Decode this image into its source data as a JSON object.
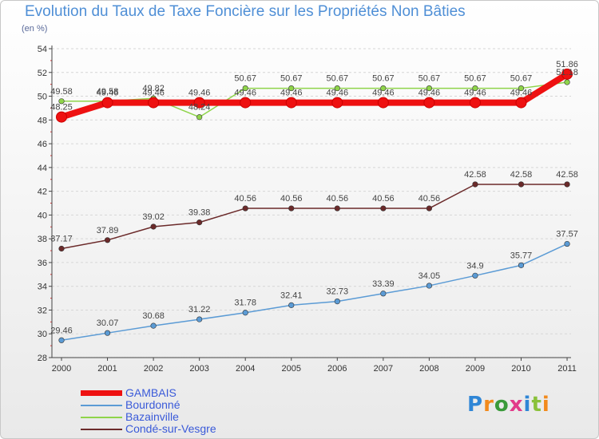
{
  "title": "Evolution du Taux de Taxe Foncière sur les Propriétés Non Bâties",
  "unit": "(en %)",
  "logo": "Proxiti",
  "chart_data": {
    "type": "line",
    "title": "Evolution du Taux de Taxe Foncière sur les Propriétés Non Bâties",
    "ylabel": "(en %)",
    "xlabel": "",
    "categories": [
      "2000",
      "2001",
      "2002",
      "2003",
      "2004",
      "2005",
      "2006",
      "2007",
      "2008",
      "2009",
      "2010",
      "2011"
    ],
    "ylim": [
      28,
      54
    ],
    "yticks": [
      28,
      30,
      32,
      34,
      36,
      38,
      40,
      42,
      44,
      46,
      48,
      50,
      52,
      54
    ],
    "grid": "horizontal-dashed",
    "series": [
      {
        "name": "Bourdonné",
        "color": "#5b9bd5",
        "values": [
          29.46,
          30.07,
          30.68,
          31.22,
          31.78,
          32.41,
          32.73,
          33.39,
          34.05,
          34.9,
          35.77,
          37.57
        ],
        "labels": [
          "29.46",
          "30.07",
          "30.68",
          "31.22",
          "31.78",
          "32.41",
          "32.73",
          "33.39",
          "34.05",
          "34.9",
          "35.77",
          "37.57"
        ]
      },
      {
        "name": "Condé-sur-Vesgre",
        "color": "#6b2a2a",
        "values": [
          37.17,
          37.89,
          39.02,
          39.38,
          40.56,
          40.56,
          40.56,
          40.56,
          40.56,
          42.58,
          42.58,
          42.58
        ],
        "labels": [
          "37.17",
          "37.89",
          "39.02",
          "39.38",
          "40.56",
          "40.56",
          "40.56",
          "40.56",
          "40.56",
          "42.58",
          "42.58",
          "42.58"
        ]
      },
      {
        "name": "Bazainville",
        "color": "#8fd44a",
        "values": [
          49.58,
          49.58,
          49.82,
          48.24,
          50.67,
          50.67,
          50.67,
          50.67,
          50.67,
          50.67,
          50.67,
          51.18
        ],
        "labels": [
          "49.58",
          "49.58",
          "49.82",
          "48.24",
          "50.67",
          "50.67",
          "50.67",
          "50.67",
          "50.67",
          "50.67",
          "50.67",
          "51.18"
        ]
      },
      {
        "name": "GAMBAIS",
        "color": "#ee1111",
        "values": [
          48.25,
          49.46,
          49.46,
          49.46,
          49.46,
          49.46,
          49.46,
          49.46,
          49.46,
          49.46,
          49.46,
          51.86
        ],
        "labels": [
          "48.25",
          "49.46",
          "49.46",
          "49.46",
          "49.46",
          "49.46",
          "49.46",
          "49.46",
          "49.46",
          "49.46",
          "49.46",
          "51.86"
        ]
      }
    ],
    "legend": [
      "GAMBAIS",
      "Bourdonné",
      "Bazainville",
      "Condé-sur-Vesgre"
    ]
  }
}
